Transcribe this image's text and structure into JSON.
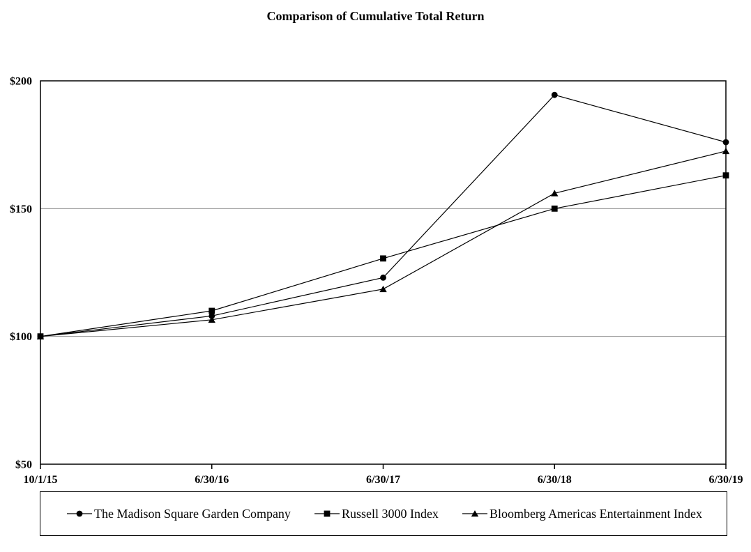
{
  "chart_data": {
    "type": "line",
    "title": "Comparison of Cumulative Total Return",
    "x_categories": [
      "10/1/15",
      "6/30/16",
      "6/30/17",
      "6/30/18",
      "6/30/19"
    ],
    "y_ticks": [
      50,
      100,
      150,
      200
    ],
    "y_tick_labels": [
      "$50",
      "$100",
      "$150",
      "$200"
    ],
    "ylim": [
      50,
      200
    ],
    "grid_values": [
      100,
      150
    ],
    "grid_on": true,
    "legend_position": "bottom",
    "series": [
      {
        "name": "The Madison Square Garden Company",
        "marker": "circle",
        "values": [
          100,
          108,
          123,
          194.5,
          176
        ]
      },
      {
        "name": "Russell 3000 Index",
        "marker": "square",
        "values": [
          100,
          110,
          130.5,
          150,
          163
        ]
      },
      {
        "name": "Bloomberg Americas Entertainment Index",
        "marker": "triangle",
        "values": [
          100,
          106.5,
          118.5,
          156,
          172.5
        ]
      }
    ],
    "colors": {
      "line": "#000000",
      "marker": "#000000",
      "grid": "#8c8c8c",
      "text": "#000000",
      "background": "#ffffff"
    }
  }
}
